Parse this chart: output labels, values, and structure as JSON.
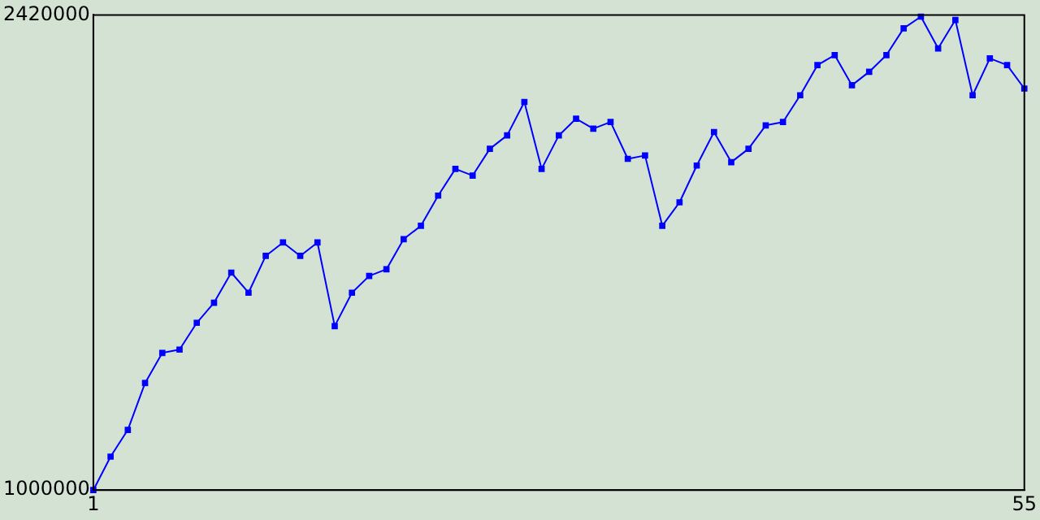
{
  "chart_data": {
    "type": "line",
    "x": [
      1,
      2,
      3,
      4,
      5,
      6,
      7,
      8,
      9,
      10,
      11,
      12,
      13,
      14,
      15,
      16,
      17,
      18,
      19,
      20,
      21,
      22,
      23,
      24,
      25,
      26,
      27,
      28,
      29,
      30,
      31,
      32,
      33,
      34,
      35,
      36,
      37,
      38,
      39,
      40,
      41,
      42,
      43,
      44,
      45,
      46,
      47,
      48,
      49,
      50,
      51,
      52,
      53,
      54,
      55
    ],
    "series": [
      {
        "color": "#0000ff",
        "values": [
          1000000,
          1100000,
          1180000,
          1320000,
          1410000,
          1420000,
          1500000,
          1560000,
          1650000,
          1590000,
          1700000,
          1740000,
          1700000,
          1740000,
          1490000,
          1590000,
          1640000,
          1660000,
          1750000,
          1790000,
          1880000,
          1960000,
          1940000,
          2020000,
          2060000,
          2160000,
          1960000,
          2060000,
          2110000,
          2080000,
          2100000,
          1990000,
          2000000,
          1790000,
          1860000,
          1970000,
          2070000,
          1980000,
          2020000,
          2090000,
          2100000,
          2180000,
          2270000,
          2300000,
          2210000,
          2250000,
          2300000,
          2380000,
          2415000,
          2320000,
          2405000,
          2180000,
          2290000,
          2270000,
          2200000
        ]
      }
    ],
    "xlim": [
      1,
      55
    ],
    "xticks": [
      1,
      55
    ],
    "ylim": [
      1000000,
      2420000
    ],
    "yticks": [
      1000000,
      2420000
    ],
    "grid": false,
    "legend": false,
    "marker": "square",
    "line_style": "solid"
  }
}
